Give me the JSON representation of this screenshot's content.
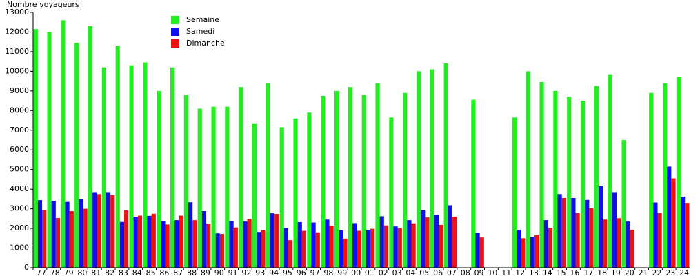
{
  "chart_data": {
    "type": "bar",
    "y_label": "Nombre voyageurs",
    "categories": [
      "77",
      "78",
      "79",
      "80",
      "81",
      "82",
      "83",
      "84",
      "85",
      "86",
      "87",
      "88",
      "89",
      "90",
      "91",
      "92",
      "93",
      "94",
      "95",
      "96",
      "97",
      "98",
      "99",
      "00",
      "01",
      "02",
      "03",
      "04",
      "05",
      "06",
      "07",
      "08",
      "09",
      "10",
      "11",
      "12",
      "13",
      "14",
      "15",
      "16",
      "17",
      "18",
      "19",
      "20",
      "21",
      "22",
      "23",
      "24"
    ],
    "series": [
      {
        "name": "Semaine",
        "color": "#22ee22",
        "values": [
          12150,
          12000,
          12600,
          11450,
          12300,
          10200,
          11300,
          10300,
          10450,
          9000,
          10200,
          8800,
          8100,
          8200,
          8200,
          9200,
          7350,
          9400,
          7150,
          7600,
          7900,
          8750,
          9000,
          9200,
          8800,
          9400,
          7650,
          8900,
          10000,
          10100,
          10400,
          null,
          8550,
          null,
          null,
          7650,
          10000,
          9450,
          9000,
          8700,
          8500,
          9250,
          9850,
          6500,
          null,
          8900,
          9400,
          9700
        ]
      },
      {
        "name": "Samedi",
        "color": "#1010ee",
        "values": [
          3440,
          3400,
          3350,
          3500,
          3850,
          3850,
          2330,
          2600,
          2640,
          2380,
          2420,
          3330,
          2880,
          1750,
          2380,
          2350,
          1820,
          2770,
          2020,
          2320,
          2300,
          2450,
          1900,
          2270,
          1930,
          2620,
          2100,
          2420,
          2920,
          2700,
          3180,
          null,
          1780,
          null,
          null,
          1930,
          1550,
          2420,
          3750,
          3550,
          3450,
          4150,
          3850,
          2350,
          null,
          3320,
          5150,
          3620
        ]
      },
      {
        "name": "Dimanche",
        "color": "#ee1111",
        "values": [
          2950,
          2530,
          2880,
          3000,
          3750,
          3700,
          2920,
          2650,
          2750,
          2200,
          2650,
          2420,
          2250,
          1720,
          2050,
          2480,
          1900,
          2740,
          1400,
          1880,
          1800,
          2130,
          1480,
          1880,
          1980,
          2150,
          2020,
          2260,
          2560,
          2180,
          2600,
          null,
          1540,
          null,
          null,
          1500,
          1660,
          2030,
          3550,
          2780,
          3030,
          2450,
          2520,
          1930,
          null,
          2780,
          4550,
          3300
        ]
      }
    ],
    "ylim": [
      0,
      13000
    ],
    "yticks": [
      0,
      1000,
      2000,
      3000,
      4000,
      5000,
      6000,
      7000,
      8000,
      9000,
      10000,
      11000,
      12000,
      13000
    ]
  }
}
